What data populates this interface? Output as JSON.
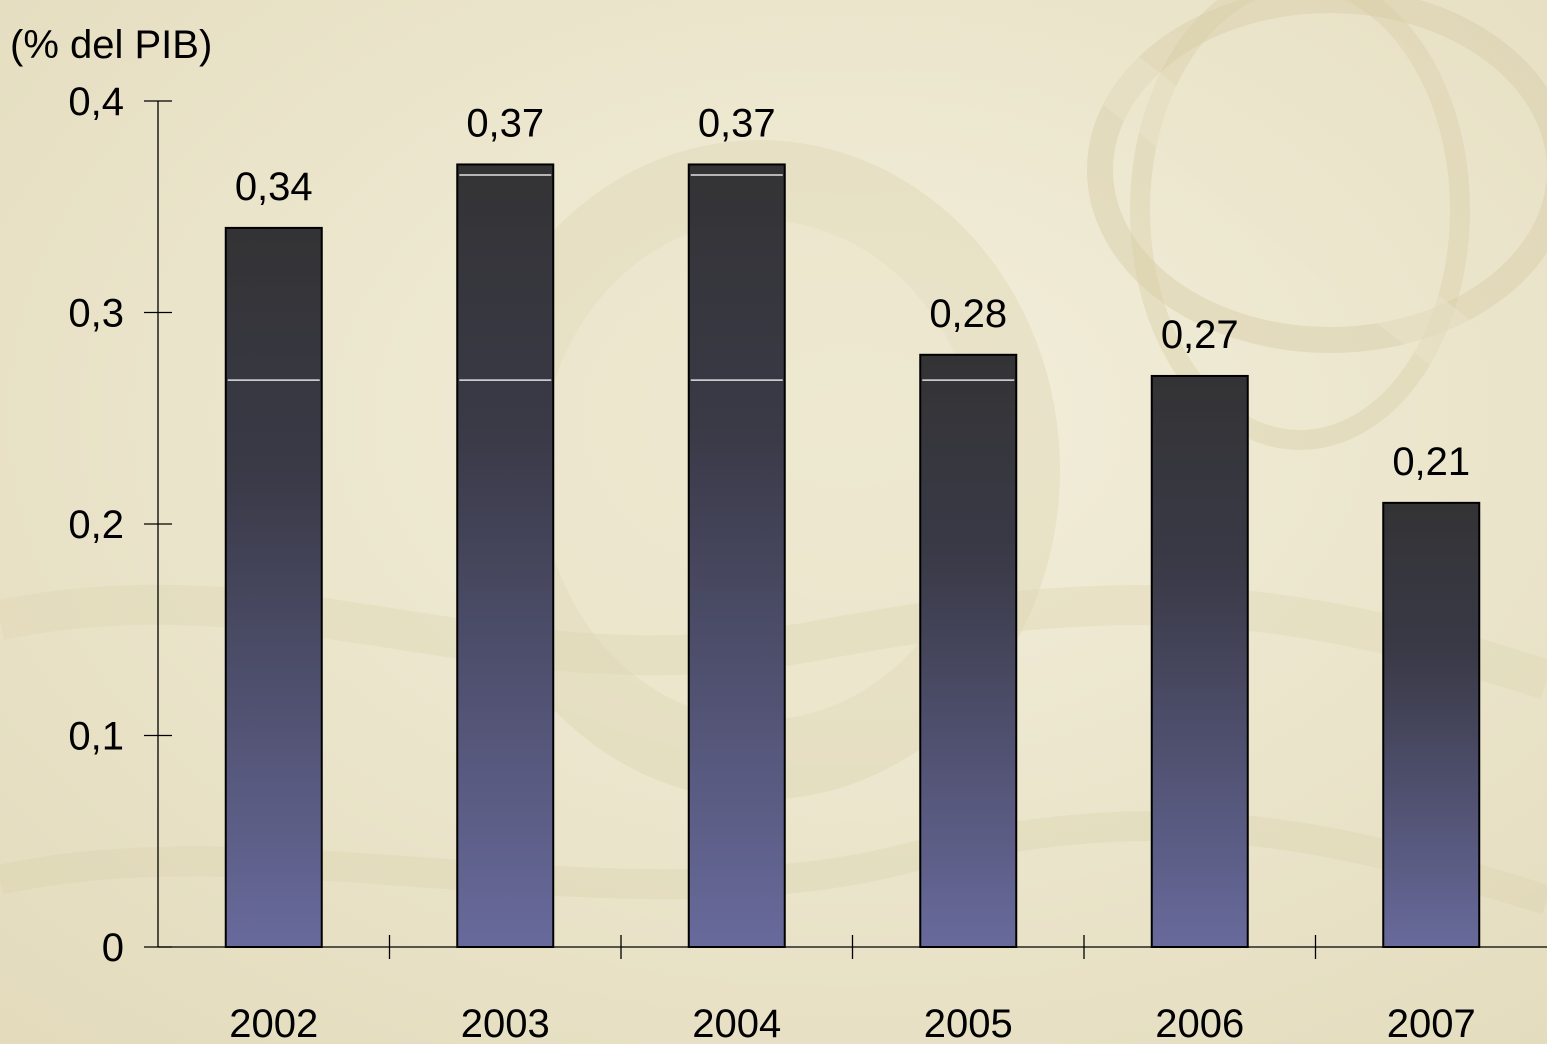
{
  "chart_data": {
    "type": "bar",
    "categories": [
      "2002",
      "2003",
      "2004",
      "2005",
      "2006",
      "2007"
    ],
    "values": [
      0.34,
      0.37,
      0.37,
      0.28,
      0.27,
      0.21
    ],
    "data_labels": [
      "0,34",
      "0,37",
      "0,37",
      "0,28",
      "0,27",
      "0,21"
    ],
    "title": "",
    "unit_label": "(% del PIB)",
    "xlabel": "",
    "ylabel": "",
    "ylim": [
      0,
      0.4
    ],
    "yticks": [
      0,
      0.1,
      0.2,
      0.3,
      0.4
    ],
    "ytick_labels": [
      "0",
      "0,1",
      "0,2",
      "0,3",
      "0,4"
    ],
    "grid": false,
    "legend": "none",
    "colors": {
      "bar_top": "#333335",
      "bar_bottom": "#686a9c",
      "background_light": "#f3efdc",
      "background_dark": "#d9d0ac",
      "highlight_line": "#ffffff"
    }
  }
}
